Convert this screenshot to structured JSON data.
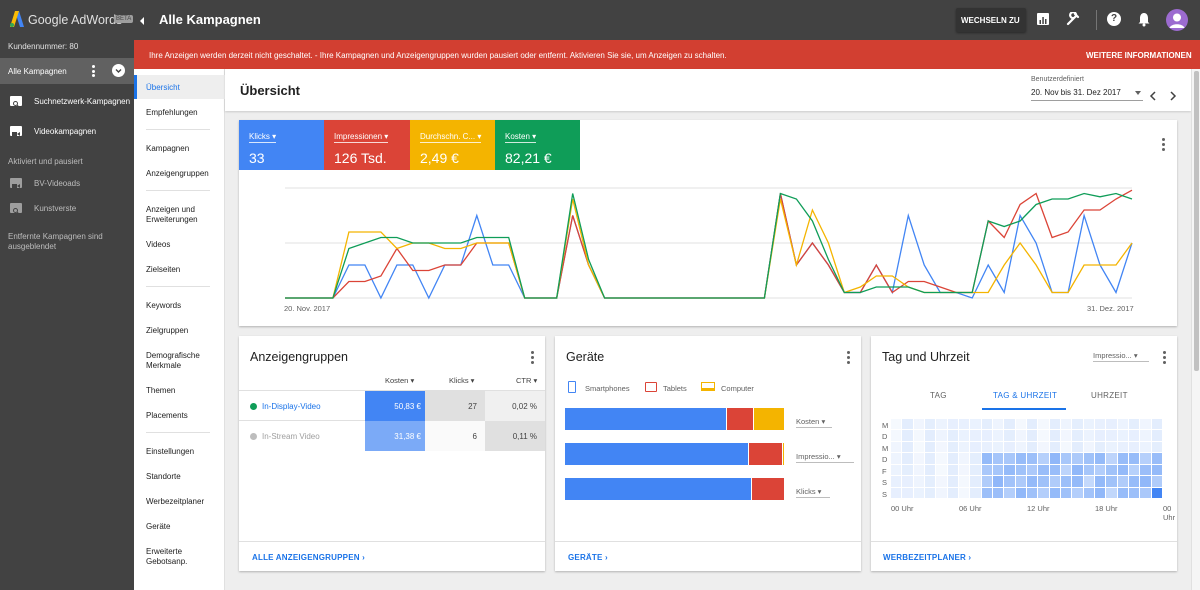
{
  "app": {
    "name": "Google AdWords",
    "beta": "BETA",
    "customer": "Kundennummer: 80"
  },
  "sidebar": {
    "all_campaigns": "Alle Kampagnen",
    "campaigns": [
      "Suchnetzwerk-Kampagnen",
      "Videokampagnen"
    ],
    "section": "Aktiviert und pausiert",
    "paused": [
      "BV-Videoads",
      "Kunstverste"
    ],
    "removed_note": "Entfernte Kampagnen sind ausgeblendet"
  },
  "topbar": {
    "title": "Alle Kampagnen",
    "switch_label": "WECHSELN ZU"
  },
  "alert": {
    "text": "Ihre Anzeigen werden derzeit nicht geschaltet. - Ihre Kampagnen und Anzeigengruppen wurden pausiert oder entfernt. Aktivieren Sie sie, um Anzeigen zu schalten.",
    "action": "WEITERE INFORMATIONEN"
  },
  "subnav": {
    "items": [
      "Übersicht",
      "Empfehlungen",
      "Kampagnen",
      "Anzeigengruppen",
      "Anzeigen und Erweiterungen",
      "Videos",
      "Zielseiten",
      "Keywords",
      "Zielgruppen",
      "Demografische Merkmale",
      "Themen",
      "Placements",
      "Einstellungen",
      "Standorte",
      "Werbezeitplaner",
      "Geräte",
      "Erweiterte Gebotsanp."
    ]
  },
  "overview": {
    "title": "Übersicht",
    "range_label": "Benutzerdefiniert",
    "range": "20. Nov bis 31. Dez 2017"
  },
  "metrics": [
    {
      "label": "Klicks",
      "value": "33",
      "color": "#4285f4"
    },
    {
      "label": "Impressionen",
      "value": "126 Tsd.",
      "color": "#db4437"
    },
    {
      "label": "Durchschn. C...",
      "value": "2,49 €",
      "color": "#f4b400"
    },
    {
      "label": "Kosten",
      "value": "82,21 €",
      "color": "#0f9d58"
    }
  ],
  "chart_data": {
    "type": "line",
    "x_start": "20. Nov. 2017",
    "x_end": "31. Dez. 2017",
    "series": [
      {
        "name": "Klicks",
        "color": "#4285f4",
        "values": [
          0,
          0,
          0,
          0,
          0.3,
          0.3,
          0,
          0.3,
          0.3,
          0,
          0.3,
          0.3,
          0.75,
          0.3,
          0.3,
          0,
          0,
          0,
          0.75,
          0.3,
          0,
          0,
          0,
          0,
          0,
          0,
          0,
          0,
          0,
          0,
          0,
          0.95,
          0.3,
          0.5,
          0.3,
          0.05,
          0.05,
          0.3,
          0.05,
          0.75,
          0.3,
          0.05,
          0.05,
          0,
          0.3,
          0.05,
          0.75,
          0.5,
          0.05,
          0.05,
          0.75,
          0.3,
          0.05,
          0.5
        ]
      },
      {
        "name": "Impressionen",
        "color": "#db4437",
        "values": [
          0,
          0,
          0,
          0,
          0.15,
          0.15,
          0.2,
          0.45,
          0.25,
          0.25,
          0.3,
          0.3,
          0.5,
          0.5,
          0.5,
          0,
          0,
          0,
          0.75,
          0.3,
          0,
          0,
          0,
          0,
          0,
          0,
          0,
          0,
          0,
          0,
          0,
          0.95,
          0.3,
          0.5,
          0.3,
          0.05,
          0.05,
          0.3,
          0.05,
          0.15,
          0.15,
          0.1,
          0.05,
          0.05,
          0.7,
          0.55,
          0.85,
          0.95,
          0.55,
          0.6,
          0.8,
          0.8,
          0.9,
          0.98
        ]
      },
      {
        "name": "Durchschn. C...",
        "color": "#f4b400",
        "values": [
          0,
          0,
          0,
          0,
          0.6,
          0.6,
          0.6,
          0.45,
          0.5,
          0.5,
          0.45,
          0.45,
          0.5,
          0.5,
          0.5,
          0,
          0,
          0,
          0.9,
          0.3,
          0,
          0,
          0,
          0,
          0,
          0,
          0,
          0,
          0,
          0,
          0,
          0.9,
          0.3,
          0.8,
          0.5,
          0.05,
          0.1,
          0.2,
          0.2,
          0.1,
          0.05,
          0.05,
          0.05,
          0.05,
          0.05,
          0.3,
          0.5,
          0.3,
          0.05,
          0.05,
          0.3,
          0.3,
          0.3,
          0.5
        ]
      },
      {
        "name": "Kosten",
        "color": "#0f9d58",
        "values": [
          0,
          0,
          0,
          0,
          0.45,
          0.5,
          0.55,
          0.55,
          0.5,
          0.5,
          0.5,
          0.5,
          0.55,
          0.55,
          0.55,
          0,
          0,
          0,
          0.95,
          0.35,
          0,
          0,
          0,
          0,
          0,
          0,
          0,
          0,
          0,
          0,
          0,
          0.95,
          0.9,
          0.7,
          0.35,
          0.05,
          0.05,
          0.1,
          0.1,
          0.1,
          0.05,
          0.05,
          0.05,
          0.05,
          0.7,
          0.65,
          0.7,
          0.85,
          0.9,
          0.9,
          0.95,
          0.92,
          0.95,
          0.9
        ]
      }
    ]
  },
  "adgroups": {
    "title": "Anzeigengruppen",
    "columns": [
      "Kosten",
      "Klicks",
      "CTR"
    ],
    "rows": [
      {
        "name": "In-Display-Video",
        "cost": "50,83 €",
        "clicks": "27",
        "ctr": "0,02 %"
      },
      {
        "name": "In-Stream Video",
        "cost": "31,38 €",
        "clicks": "6",
        "ctr": "0,11 %"
      }
    ],
    "link": "ALLE ANZEIGENGRUPPEN"
  },
  "devices": {
    "title": "Geräte",
    "legend": [
      "Smartphones",
      "Tablets",
      "Computer"
    ],
    "colors": [
      "#4285f4",
      "#db4437",
      "#f4b400"
    ],
    "rows": [
      {
        "label": "Kosten",
        "shares": [
          0.735,
          0.125,
          0.14
        ]
      },
      {
        "label": "Impressio...",
        "shares": [
          0.835,
          0.155,
          0.01
        ]
      },
      {
        "label": "Klicks",
        "shares": [
          0.85,
          0.15,
          0
        ]
      }
    ],
    "link": "GERÄTE"
  },
  "daytime": {
    "title": "Tag und Uhrzeit",
    "metric": "Impressio...",
    "tabs": [
      "TAG",
      "TAG & UHRZEIT",
      "UHRZEIT"
    ],
    "days": [
      "M",
      "D",
      "M",
      "D",
      "F",
      "S",
      "S"
    ],
    "hours": [
      "00 Uhr",
      "06 Uhr",
      "12 Uhr",
      "18 Uhr",
      "00 Uhr"
    ],
    "link": "WERBEZEITPLANER"
  }
}
